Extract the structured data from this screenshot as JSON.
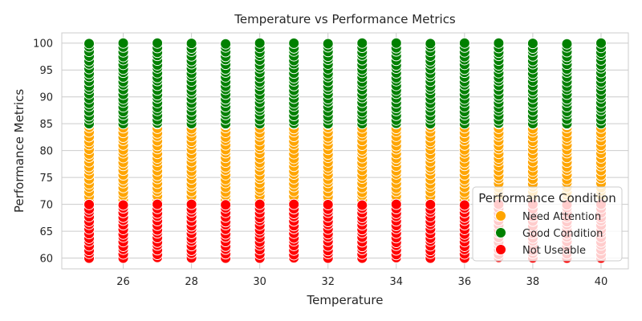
{
  "chart_data": {
    "type": "scatter",
    "title": "Temperature vs Performance Metrics",
    "xlabel": "Temperature",
    "ylabel": "Performance Metrics",
    "xlim": [
      24.2,
      40.8
    ],
    "ylim": [
      58,
      101.9
    ],
    "x_ticks": [
      26,
      28,
      30,
      32,
      34,
      36,
      38,
      40
    ],
    "y_ticks": [
      60,
      65,
      70,
      75,
      80,
      85,
      90,
      95,
      100
    ],
    "grid": true,
    "legend": {
      "title": "Performance Condition",
      "placement": "lower right"
    },
    "x": [
      25,
      26,
      27,
      28,
      29,
      30,
      31,
      32,
      33,
      34,
      35,
      36,
      37,
      38,
      39,
      40
    ],
    "series": [
      {
        "name": "Need Attention",
        "color": "#ffa500",
        "y_min": 70,
        "y_max": 85,
        "points_per_x": 20
      },
      {
        "name": "Good Condition",
        "color": "#008000",
        "y_min": 85,
        "y_max": 100,
        "points_per_x": 20
      },
      {
        "name": "Not Useable",
        "color": "#ff0000",
        "y_min": 60,
        "y_max": 70,
        "points_per_x": 14
      }
    ]
  }
}
